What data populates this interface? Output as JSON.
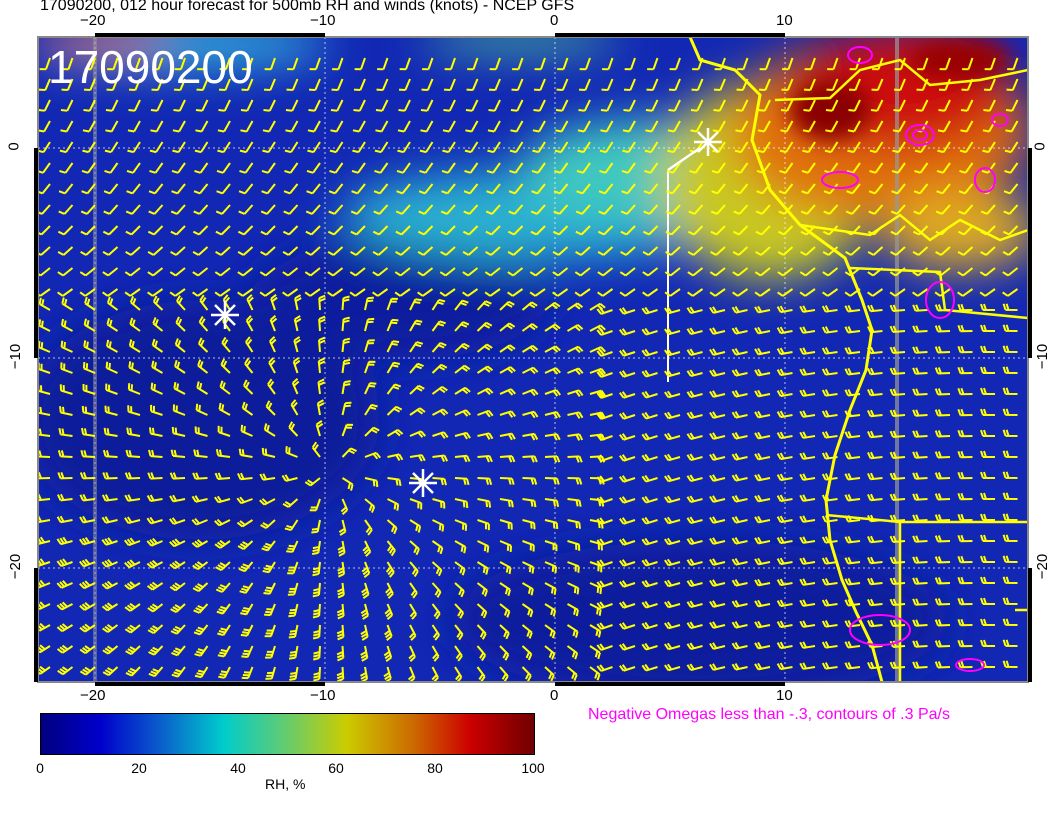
{
  "title": "17090200, 012 hour forecast for 500mb RH and winds (knots) - NCEP GFS",
  "date_stamp": "17090200",
  "map": {
    "x_ticks": [
      "−20",
      "−10",
      "0",
      "10"
    ],
    "y_ticks": [
      "0",
      "−10",
      "−20"
    ],
    "variables": [
      "500mb RH",
      "wind barbs (knots)",
      "negative omega contours"
    ],
    "colors": {
      "barbs": "#ffff00",
      "coastline": "#ffff00",
      "omega_contours": "#ff00ff",
      "markers": "#ffffff"
    }
  },
  "colorbar": {
    "ticks": [
      "0",
      "20",
      "40",
      "60",
      "80",
      "100"
    ],
    "label": "RH, %",
    "range": [
      0,
      100
    ]
  },
  "omega_note": "Negative Omegas less than -.3, contours of .3 Pa/s"
}
